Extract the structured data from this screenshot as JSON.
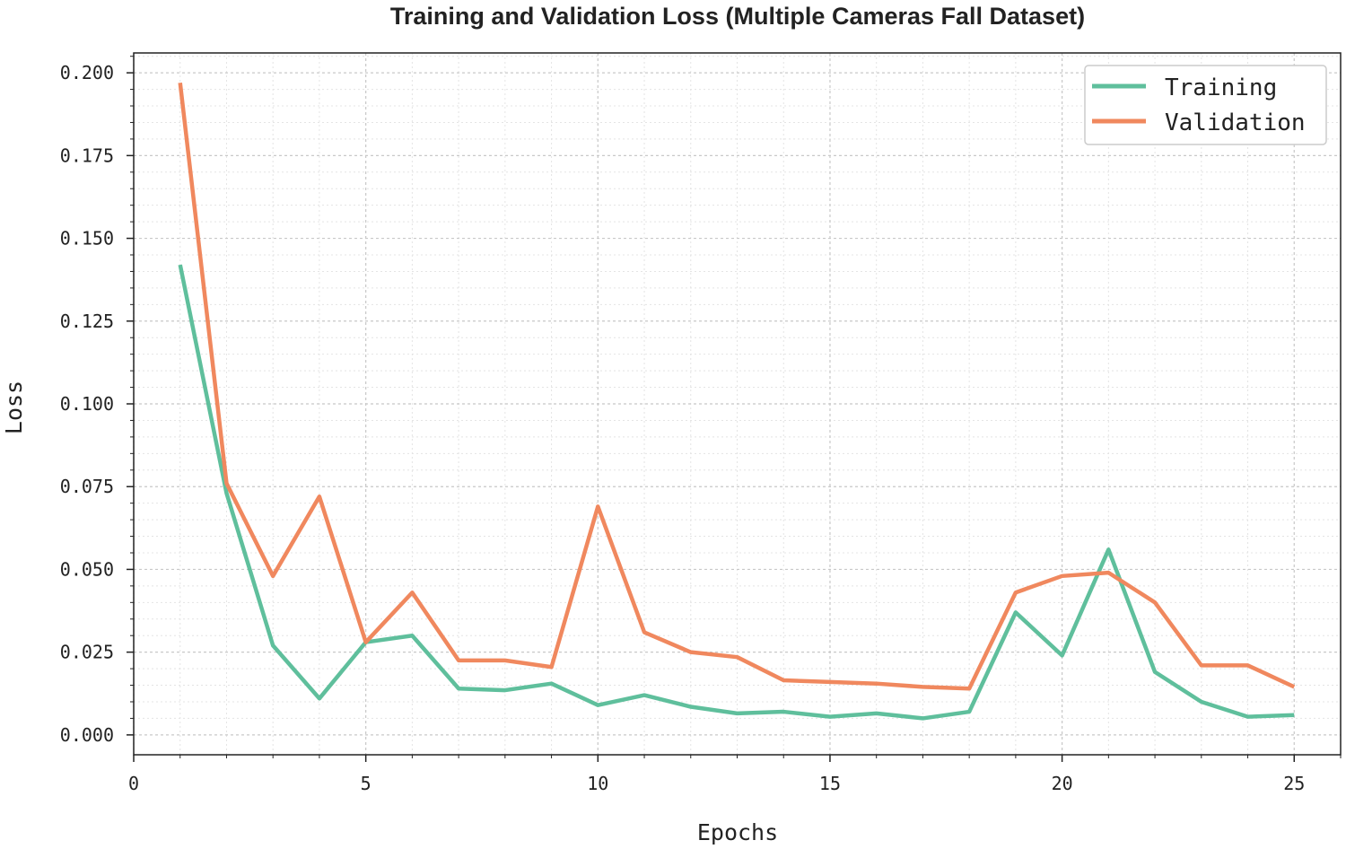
{
  "chart_data": {
    "type": "line",
    "title": "Training and Validation Loss (Multiple Cameras Fall Dataset)",
    "xlabel": "Epochs",
    "ylabel": "Loss",
    "xlim": [
      0,
      26
    ],
    "ylim": [
      -0.006,
      0.206
    ],
    "xticks": [
      0,
      5,
      10,
      15,
      20,
      25
    ],
    "xtick_labels": [
      "0",
      "5",
      "10",
      "15",
      "20",
      "25"
    ],
    "yticks": [
      0.0,
      0.025,
      0.05,
      0.075,
      0.1,
      0.125,
      0.15,
      0.175,
      0.2
    ],
    "ytick_labels": [
      "0.000",
      "0.025",
      "0.050",
      "0.075",
      "0.100",
      "0.125",
      "0.150",
      "0.175",
      "0.200"
    ],
    "grid": true,
    "legend_position": "top-right",
    "x": [
      1,
      2,
      3,
      4,
      5,
      6,
      7,
      8,
      9,
      10,
      11,
      12,
      13,
      14,
      15,
      16,
      17,
      18,
      19,
      20,
      21,
      22,
      23,
      24,
      25
    ],
    "series": [
      {
        "name": "Training",
        "color": "#5fbf9c",
        "values": [
          0.142,
          0.073,
          0.027,
          0.011,
          0.028,
          0.03,
          0.014,
          0.0135,
          0.0155,
          0.009,
          0.012,
          0.0085,
          0.0065,
          0.007,
          0.0055,
          0.0065,
          0.005,
          0.007,
          0.037,
          0.024,
          0.056,
          0.019,
          0.01,
          0.0055,
          0.006
        ]
      },
      {
        "name": "Validation",
        "color": "#f0885e",
        "values": [
          0.197,
          0.076,
          0.048,
          0.072,
          0.028,
          0.043,
          0.0225,
          0.0225,
          0.0205,
          0.069,
          0.031,
          0.025,
          0.0235,
          0.0165,
          0.016,
          0.0155,
          0.0145,
          0.014,
          0.043,
          0.048,
          0.049,
          0.04,
          0.021,
          0.021,
          0.0145
        ]
      }
    ]
  }
}
